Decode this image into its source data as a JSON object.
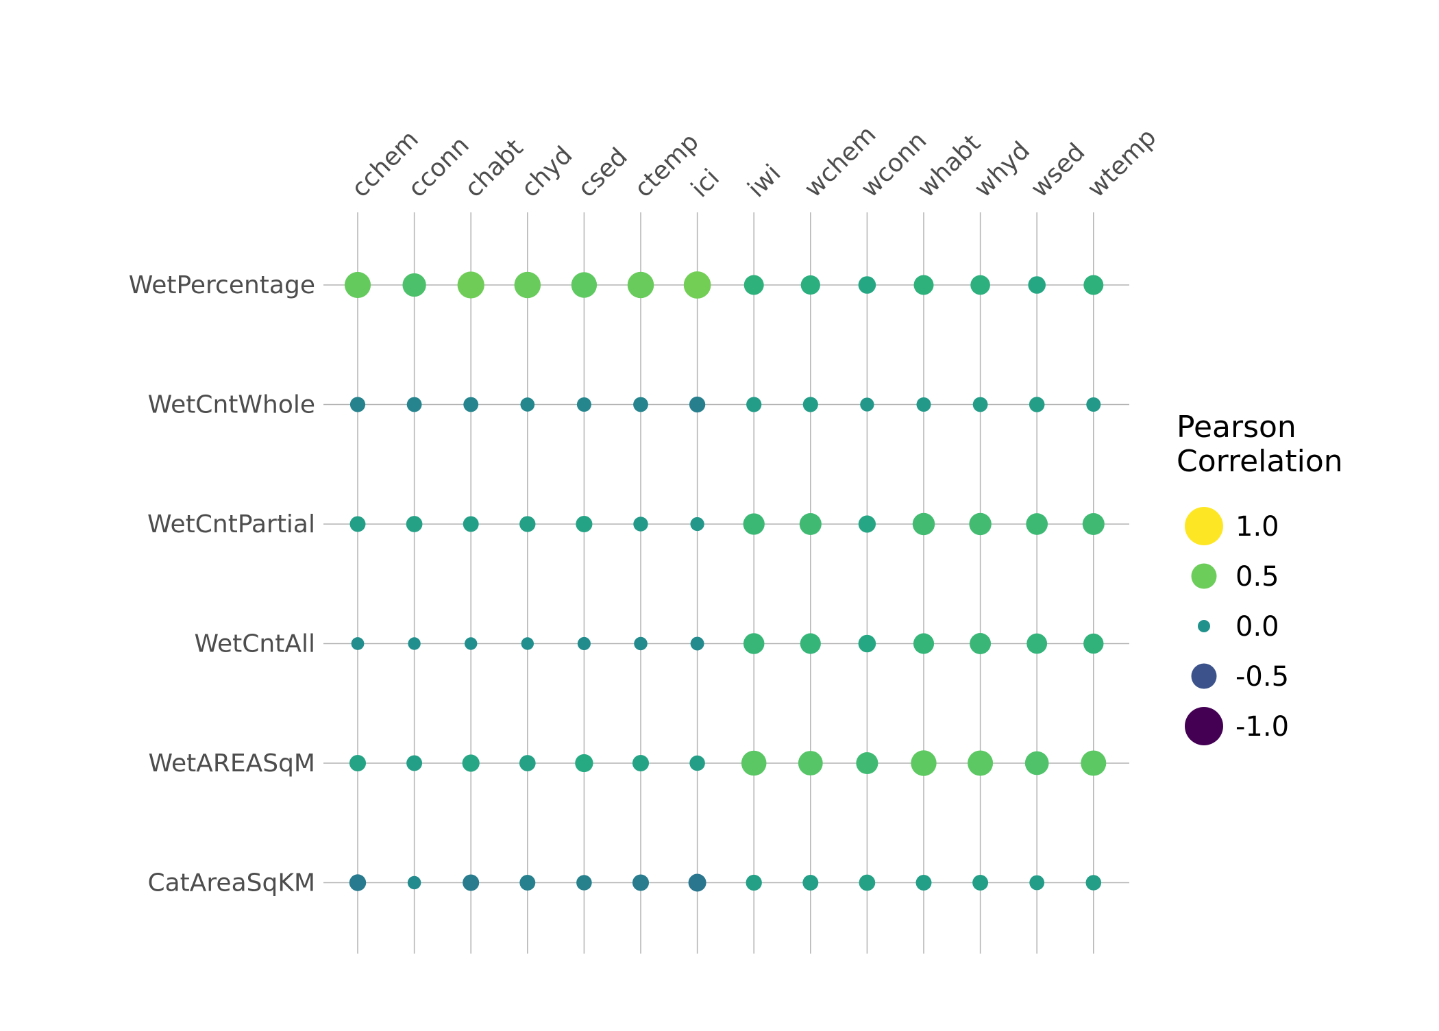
{
  "chart_data": {
    "type": "scatter",
    "subtype": "bubble-correlation-matrix",
    "title": "",
    "columns": [
      "cchem",
      "cconn",
      "chabt",
      "chyd",
      "csed",
      "ctemp",
      "ici",
      "iwi",
      "wchem",
      "wconn",
      "whabt",
      "whyd",
      "wsed",
      "wtemp"
    ],
    "rows": [
      "WetPercentage",
      "WetCntWhole",
      "WetCntPartial",
      "WetCntAll",
      "WetAREASqM",
      "CatAreaSqKM"
    ],
    "values": [
      [
        0.53,
        0.43,
        0.56,
        0.54,
        0.51,
        0.54,
        0.57,
        0.29,
        0.27,
        0.2,
        0.29,
        0.28,
        0.2,
        0.29
      ],
      [
        -0.11,
        -0.1,
        -0.1,
        -0.07,
        -0.08,
        -0.1,
        -0.14,
        0.11,
        0.11,
        0.06,
        0.08,
        0.1,
        0.12,
        0.08
      ],
      [
        0.13,
        0.15,
        0.13,
        0.14,
        0.16,
        0.09,
        0.06,
        0.35,
        0.37,
        0.19,
        0.38,
        0.38,
        0.36,
        0.37
      ],
      [
        -0.02,
        -0.01,
        -0.01,
        -0.01,
        -0.03,
        -0.04,
        -0.05,
        0.33,
        0.32,
        0.2,
        0.32,
        0.34,
        0.31,
        0.3
      ],
      [
        0.16,
        0.13,
        0.19,
        0.15,
        0.22,
        0.16,
        0.12,
        0.49,
        0.47,
        0.37,
        0.51,
        0.5,
        0.44,
        0.5
      ],
      [
        -0.17,
        -0.04,
        -0.16,
        -0.13,
        -0.12,
        -0.16,
        -0.21,
        0.14,
        0.13,
        0.15,
        0.13,
        0.13,
        0.1,
        0.12
      ]
    ],
    "color_scale": "viridis",
    "size_encodes": "absolute correlation",
    "grid": true,
    "legend": {
      "title_lines": [
        "Pearson",
        "Correlation"
      ],
      "position": "right",
      "entries": [
        {
          "value": 1.0,
          "label": "1.0",
          "color": "#fde725"
        },
        {
          "value": 0.5,
          "label": "0.5",
          "color": "#6ccd5a"
        },
        {
          "value": 0.0,
          "label": "0.0",
          "color": "#21918c"
        },
        {
          "value": -0.5,
          "label": "-0.5",
          "color": "#3b528b"
        },
        {
          "value": -1.0,
          "label": "-1.0",
          "color": "#440154"
        }
      ]
    }
  }
}
